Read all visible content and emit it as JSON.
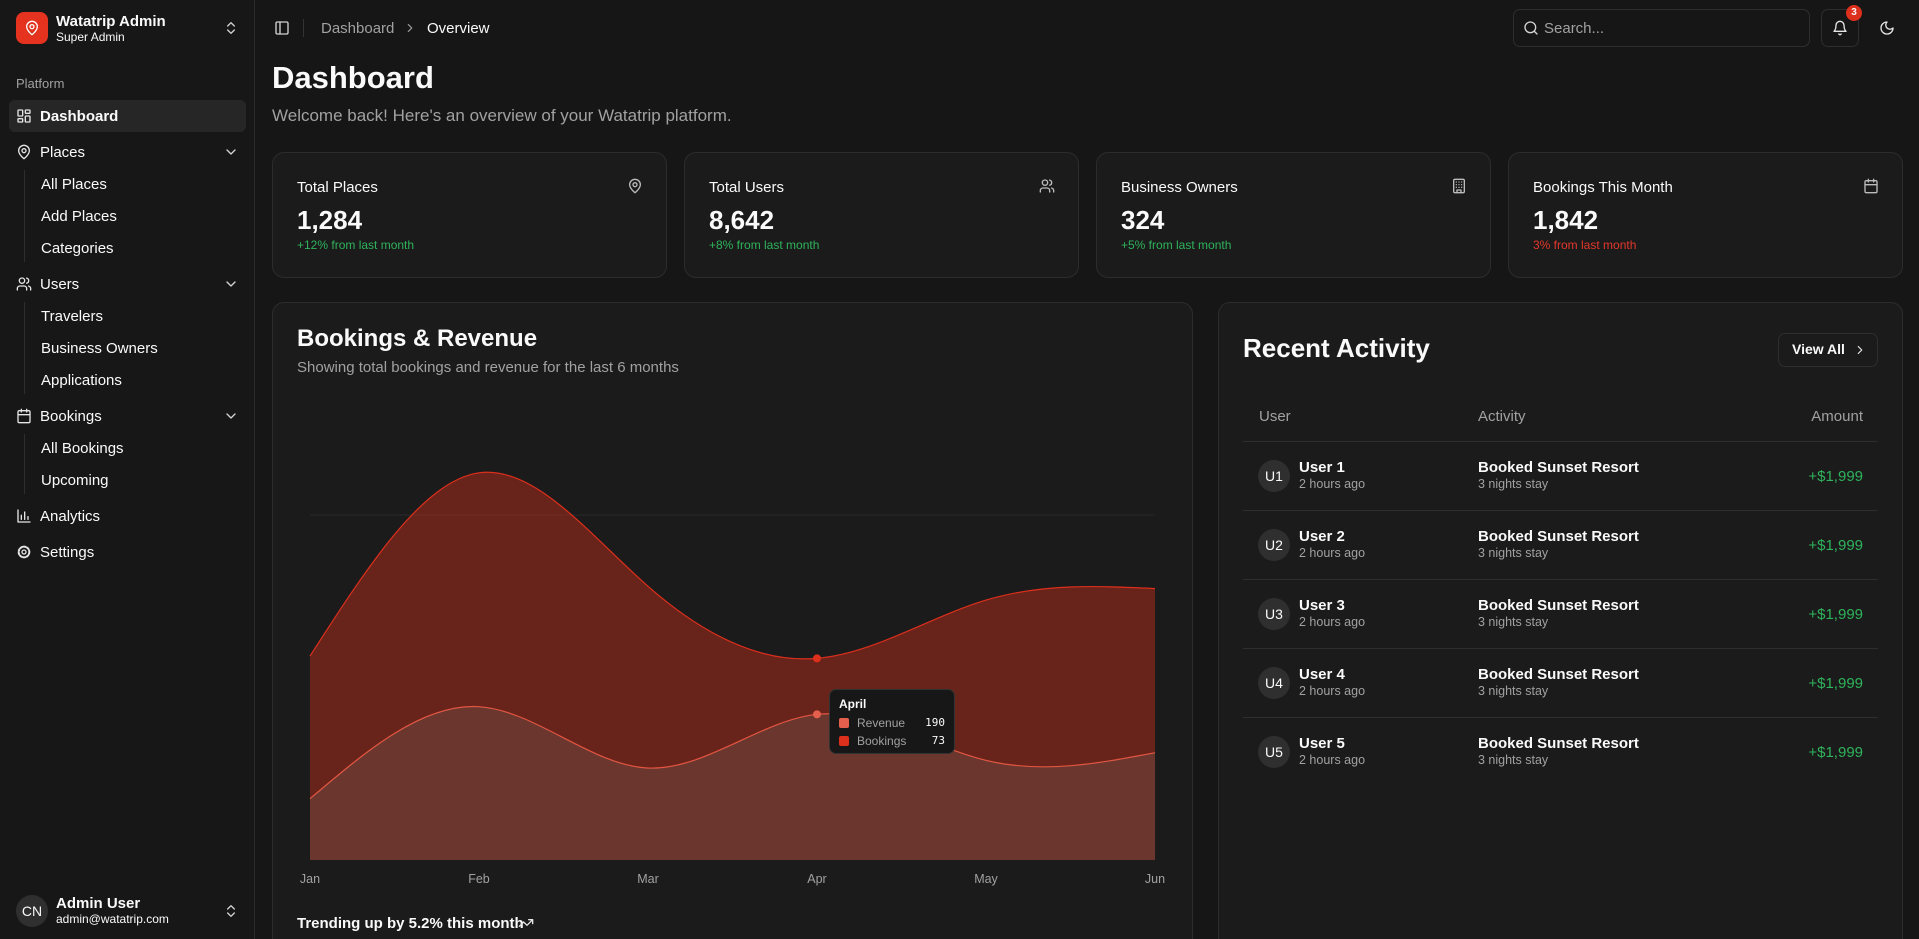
{
  "sidebar": {
    "brand": {
      "title": "Watatrip Admin",
      "subtitle": "Super Admin"
    },
    "section": "Platform",
    "nav": [
      {
        "label": "Dashboard"
      },
      {
        "label": "Places",
        "children": [
          "All Places",
          "Add Places",
          "Categories"
        ]
      },
      {
        "label": "Users",
        "children": [
          "Travelers",
          "Business Owners",
          "Applications"
        ]
      },
      {
        "label": "Bookings",
        "children": [
          "All Bookings",
          "Upcoming"
        ]
      },
      {
        "label": "Analytics"
      },
      {
        "label": "Settings"
      }
    ],
    "user": {
      "initials": "CN",
      "name": "Admin User",
      "email": "admin@watatrip.com"
    }
  },
  "header": {
    "breadcrumb": [
      "Dashboard",
      "Overview"
    ],
    "search_placeholder": "Search...",
    "notifications": "3"
  },
  "page": {
    "title": "Dashboard",
    "subtitle": "Welcome back! Here's an overview of your Watatrip platform."
  },
  "stats": [
    {
      "label": "Total Places",
      "value": "1,284",
      "change": "+12% from last month",
      "change_color": "#2fb35c"
    },
    {
      "label": "Total Users",
      "value": "8,642",
      "change": "+8% from last month",
      "change_color": "#2fb35c"
    },
    {
      "label": "Business Owners",
      "value": "324",
      "change": "+5% from last month",
      "change_color": "#2fb35c"
    },
    {
      "label": "Bookings This Month",
      "value": "1,842",
      "change": "3% from last month",
      "change_color": "#e5372b"
    }
  ],
  "chart_data": {
    "type": "area",
    "title": "Bookings & Revenue",
    "subtitle": "Showing total bookings and revenue for the last 6 months",
    "categories": [
      "Jan",
      "Feb",
      "Mar",
      "Apr",
      "May",
      "Jun"
    ],
    "stacked": true,
    "series": [
      {
        "name": "Revenue",
        "color": "#e4604c",
        "values": [
          80,
          200,
          120,
          190,
          130,
          140
        ]
      },
      {
        "name": "Bookings",
        "color": "#dc2f1c",
        "values": [
          186,
          305,
          237,
          73,
          209,
          214
        ]
      }
    ],
    "ylim": [
      0,
      600
    ],
    "yticks": [
      450
    ],
    "grid": true,
    "tooltip": {
      "title": "April",
      "active_index": 3
    },
    "footer": "Trending up by 5.2% this month"
  },
  "activity": {
    "title": "Recent Activity",
    "button": "View All",
    "columns": [
      "User",
      "Activity",
      "Amount"
    ],
    "rows": [
      {
        "initials": "U1",
        "user": "User 1",
        "time": "2 hours ago",
        "activity": "Booked Sunset Resort",
        "detail": "3 nights stay",
        "amount": "+$1,999"
      },
      {
        "initials": "U2",
        "user": "User 2",
        "time": "2 hours ago",
        "activity": "Booked Sunset Resort",
        "detail": "3 nights stay",
        "amount": "+$1,999"
      },
      {
        "initials": "U3",
        "user": "User 3",
        "time": "2 hours ago",
        "activity": "Booked Sunset Resort",
        "detail": "3 nights stay",
        "amount": "+$1,999"
      },
      {
        "initials": "U4",
        "user": "User 4",
        "time": "2 hours ago",
        "activity": "Booked Sunset Resort",
        "detail": "3 nights stay",
        "amount": "+$1,999"
      },
      {
        "initials": "U5",
        "user": "User 5",
        "time": "2 hours ago",
        "activity": "Booked Sunset Resort",
        "detail": "3 nights stay",
        "amount": "+$1,999"
      }
    ]
  }
}
